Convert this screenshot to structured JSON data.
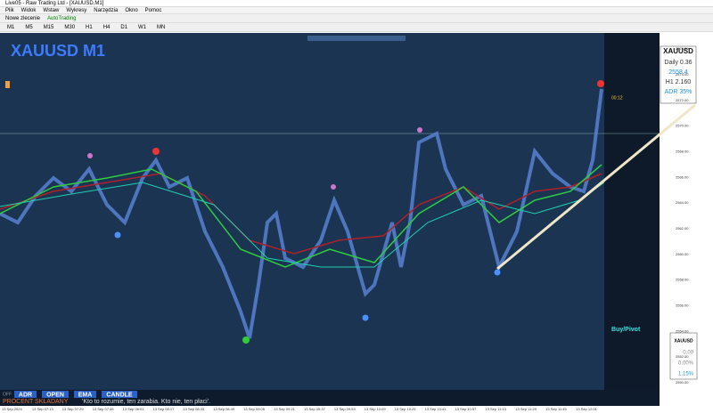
{
  "window": {
    "title": "Live05 - Raw Trading Ltd - [XAUUSD,M1]"
  },
  "menu": [
    "Plik",
    "Widok",
    "Wstaw",
    "Wykresy",
    "Narzędzia",
    "Okno",
    "Pomoc"
  ],
  "toolbar": {
    "new_order": "Nowe zlecenie",
    "autotrading": "AutoTrading",
    "timeframes": [
      "M1",
      "M5",
      "M15",
      "M30",
      "H1",
      "H4",
      "D1",
      "W1",
      "MN"
    ]
  },
  "chart": {
    "symbol_title": "XAUUSD M1",
    "timer": "00:12",
    "signal": "Buy/Pivot",
    "off": "OFF",
    "buttons": [
      "ADR",
      "OPEN",
      "EMA",
      "CANDLE"
    ],
    "caption": "PROCENT SKŁADANY",
    "quote": "'Kto to rozumie, ten zarabia. Kto nie, ten płaci'.",
    "info": {
      "symbol": "XAUUSD",
      "lines": [
        "Daily 0.36",
        "2558.4",
        "H1 2.160",
        "ADR 35%"
      ]
    },
    "panel": {
      "title": "XAUUSD",
      "values": [
        "0,00",
        "0.00%",
        "1.15%"
      ]
    }
  },
  "price_axis": [
    "2576.00",
    "2574.00",
    "2572.00",
    "2570.00",
    "2568.00",
    "2566.00",
    "2564.00",
    "2562.00",
    "2560.00",
    "2558.00",
    "2556.00",
    "2554.00",
    "2552.00",
    "2550.00"
  ],
  "time_axis": [
    "13 Sep 2024",
    "13 Sep 07:13",
    "13 Sep 07:29",
    "13 Sep 07:45",
    "13 Sep 08:01",
    "13 Sep 08:17",
    "13 Sep 08:33",
    "13 Sep 08:49",
    "13 Sep 09:05",
    "13 Sep 09:21",
    "13 Sep 09:37",
    "13 Sep 09:53",
    "13 Sep 10:09",
    "13 Sep 10:25",
    "13 Sep 10:41",
    "13 Sep 10:57",
    "13 Sep 11:13",
    "13 Sep 11:29",
    "13 Sep 11:45",
    "13 Sep 12:01"
  ]
}
